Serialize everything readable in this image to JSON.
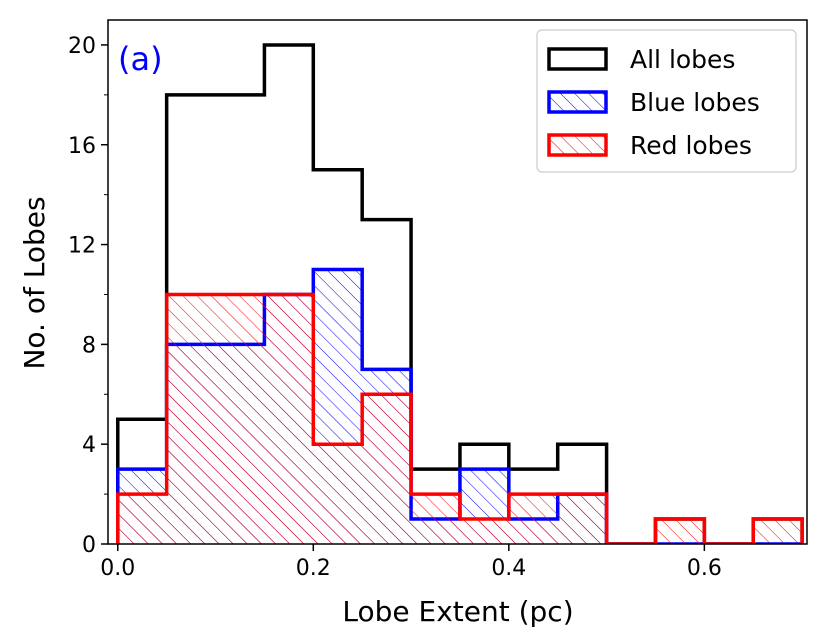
{
  "chart_data": {
    "type": "histogram",
    "panel_label": "(a)",
    "xlabel": "Lobe Extent (pc)",
    "ylabel": "No. of Lobes",
    "xlim": [
      -0.01,
      0.705
    ],
    "ylim": [
      0,
      21
    ],
    "xticks": [
      0.0,
      0.2,
      0.4,
      0.6
    ],
    "xtick_labels": [
      "0.0",
      "0.2",
      "0.4",
      "0.6"
    ],
    "yticks": [
      0,
      4,
      8,
      12,
      16,
      20
    ],
    "ytick_labels": [
      "0",
      "4",
      "8",
      "12",
      "16",
      "20"
    ],
    "y_minor_ticks": [
      2,
      6,
      10,
      14,
      18
    ],
    "bin_edges": [
      0.0,
      0.05,
      0.1,
      0.15,
      0.2,
      0.25,
      0.3,
      0.35,
      0.4,
      0.45,
      0.5,
      0.55,
      0.6,
      0.65,
      0.7
    ],
    "series": [
      {
        "name": "All lobes",
        "key": "all",
        "color": "#000000",
        "hatch": false,
        "values": [
          5,
          18,
          18,
          20,
          15,
          13,
          3,
          4,
          3,
          4,
          0,
          1,
          0,
          1
        ]
      },
      {
        "name": "Blue lobes",
        "key": "blue",
        "color": "#0000ff",
        "hatch": true,
        "values": [
          3,
          8,
          8,
          10,
          11,
          7,
          1,
          3,
          1,
          2,
          0,
          0,
          0,
          0
        ]
      },
      {
        "name": "Red lobes",
        "key": "red",
        "color": "#ff0000",
        "hatch": true,
        "values": [
          2,
          10,
          10,
          10,
          4,
          6,
          2,
          1,
          2,
          2,
          0,
          1,
          0,
          1
        ]
      }
    ],
    "legend_position": "top-right",
    "panel_label_color": "#0000ff"
  }
}
